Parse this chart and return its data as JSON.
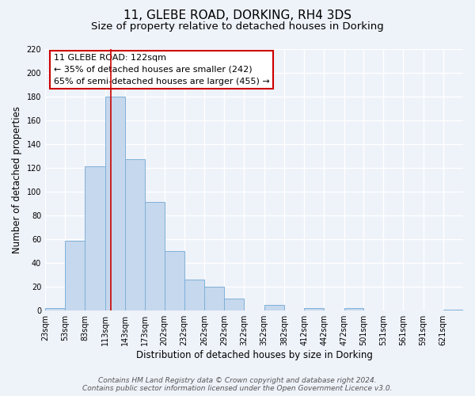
{
  "title": "11, GLEBE ROAD, DORKING, RH4 3DS",
  "subtitle": "Size of property relative to detached houses in Dorking",
  "xlabel": "Distribution of detached houses by size in Dorking",
  "ylabel": "Number of detached properties",
  "bin_edges": [
    23,
    53,
    83,
    113,
    143,
    173,
    202,
    232,
    262,
    292,
    322,
    352,
    382,
    412,
    442,
    472,
    501,
    531,
    561,
    591,
    621,
    651
  ],
  "bar_heights": [
    2,
    59,
    121,
    180,
    127,
    91,
    50,
    26,
    20,
    10,
    0,
    5,
    0,
    2,
    0,
    2,
    0,
    0,
    0,
    0,
    1
  ],
  "bar_color": "#c5d8ed",
  "bar_edge_color": "#7fb0d8",
  "vline_x": 122,
  "vline_color": "#cc0000",
  "annotation_text": "11 GLEBE ROAD: 122sqm\n← 35% of detached houses are smaller (242)\n65% of semi-detached houses are larger (455) →",
  "annotation_box_color": "#ffffff",
  "annotation_box_edge_color": "#cc0000",
  "ylim": [
    0,
    220
  ],
  "yticks": [
    0,
    20,
    40,
    60,
    80,
    100,
    120,
    140,
    160,
    180,
    200,
    220
  ],
  "xtick_labels": [
    "23sqm",
    "53sqm",
    "83sqm",
    "113sqm",
    "143sqm",
    "173sqm",
    "202sqm",
    "232sqm",
    "262sqm",
    "292sqm",
    "322sqm",
    "352sqm",
    "382sqm",
    "412sqm",
    "442sqm",
    "472sqm",
    "501sqm",
    "531sqm",
    "561sqm",
    "591sqm",
    "621sqm"
  ],
  "background_color": "#eef2f9",
  "grid_color": "#ffffff",
  "footer_line1": "Contains HM Land Registry data © Crown copyright and database right 2024.",
  "footer_line2": "Contains public sector information licensed under the Open Government Licence v3.0.",
  "title_fontsize": 11,
  "subtitle_fontsize": 9.5,
  "axis_label_fontsize": 8.5,
  "tick_fontsize": 7,
  "annotation_fontsize": 8,
  "footer_fontsize": 6.5
}
